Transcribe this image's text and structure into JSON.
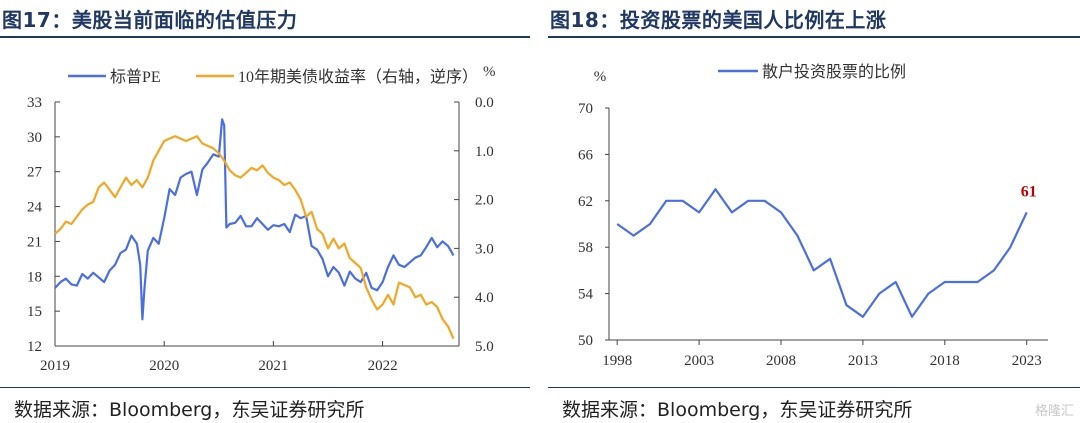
{
  "figures": [
    {
      "title": "图17：美股当前面临的估值压力",
      "source": "数据来源：Bloomberg，东吴证券研究所"
    },
    {
      "title": "图18：投资股票的美国人比例在上涨",
      "source": "数据来源：Bloomberg，东吴证券研究所"
    }
  ],
  "watermark": "格隆汇",
  "chart_data": [
    {
      "type": "line",
      "title": "",
      "xlabel": "",
      "x_ticks": [
        "2019",
        "2020",
        "2021",
        "2022"
      ],
      "x_range": [
        "2019-01",
        "2022-09"
      ],
      "y_left": {
        "label": "",
        "ylim": [
          12,
          33
        ],
        "ticks": [
          "12",
          "15",
          "18",
          "21",
          "24",
          "27",
          "30",
          "33"
        ]
      },
      "y_right": {
        "label": "%",
        "ylim": [
          0.0,
          5.0
        ],
        "inverted": true,
        "ticks": [
          "0.0",
          "1.0",
          "2.0",
          "3.0",
          "4.0",
          "5.0"
        ]
      },
      "legend": {
        "placement": "top",
        "entries": [
          "标普PE",
          "10年期美债收益率（右轴，逆序）"
        ]
      },
      "grid": false,
      "colors": {
        "sp_pe": "#4a6fe3",
        "yield": "#f5a623"
      },
      "series": [
        {
          "name": "标普PE",
          "axis": "left",
          "x": [
            2019.0,
            2019.05,
            2019.1,
            2019.15,
            2019.2,
            2019.25,
            2019.3,
            2019.35,
            2019.4,
            2019.45,
            2019.5,
            2019.55,
            2019.6,
            2019.65,
            2019.7,
            2019.75,
            2019.78,
            2019.8,
            2019.82,
            2019.85,
            2019.9,
            2019.95,
            2020.0,
            2020.05,
            2020.1,
            2020.15,
            2020.2,
            2020.25,
            2020.3,
            2020.35,
            2020.4,
            2020.45,
            2020.5,
            2020.53,
            2020.55,
            2020.57,
            2020.6,
            2020.65,
            2020.7,
            2020.75,
            2020.8,
            2020.85,
            2020.9,
            2020.95,
            2021.0,
            2021.05,
            2021.1,
            2021.15,
            2021.2,
            2021.25,
            2021.3,
            2021.35,
            2021.4,
            2021.45,
            2021.5,
            2021.55,
            2021.6,
            2021.65,
            2021.7,
            2021.75,
            2021.8,
            2021.85,
            2021.9,
            2021.95,
            2022.0,
            2022.05,
            2022.1,
            2022.15,
            2022.2,
            2022.25,
            2022.3,
            2022.35,
            2022.4,
            2022.45,
            2022.5,
            2022.55,
            2022.6,
            2022.65
          ],
          "y": [
            17.0,
            17.5,
            17.8,
            17.3,
            17.2,
            18.2,
            17.8,
            18.3,
            17.9,
            17.5,
            18.5,
            19.0,
            20.0,
            20.3,
            21.5,
            20.8,
            19.0,
            14.3,
            17.0,
            20.2,
            21.3,
            20.8,
            23.0,
            25.5,
            25.0,
            26.5,
            26.8,
            27.0,
            25.0,
            27.2,
            27.8,
            28.5,
            28.3,
            31.5,
            31.0,
            22.2,
            22.5,
            22.6,
            23.2,
            22.3,
            22.3,
            23.0,
            22.5,
            22.0,
            22.4,
            22.3,
            22.5,
            21.8,
            23.3,
            23.0,
            23.2,
            20.6,
            20.3,
            19.5,
            18.0,
            18.8,
            18.3,
            17.2,
            18.4,
            17.8,
            17.5,
            18.3,
            17.0,
            16.8,
            17.5,
            18.8,
            19.8,
            19.0,
            18.8,
            19.2,
            19.6,
            19.8,
            20.5,
            21.3,
            20.5,
            21.0,
            20.6,
            19.8
          ]
        },
        {
          "name": "10年期美债收益率（右轴，逆序）",
          "axis": "right",
          "x": [
            2019.0,
            2019.05,
            2019.1,
            2019.15,
            2019.2,
            2019.25,
            2019.3,
            2019.35,
            2019.4,
            2019.45,
            2019.5,
            2019.55,
            2019.6,
            2019.65,
            2019.7,
            2019.75,
            2019.8,
            2019.85,
            2019.9,
            2019.95,
            2020.0,
            2020.05,
            2020.1,
            2020.15,
            2020.2,
            2020.25,
            2020.3,
            2020.35,
            2020.4,
            2020.45,
            2020.5,
            2020.55,
            2020.6,
            2020.65,
            2020.7,
            2020.75,
            2020.8,
            2020.85,
            2020.9,
            2020.95,
            2021.0,
            2021.05,
            2021.1,
            2021.15,
            2021.2,
            2021.25,
            2021.3,
            2021.35,
            2021.4,
            2021.45,
            2021.5,
            2021.55,
            2021.6,
            2021.65,
            2021.7,
            2021.75,
            2021.8,
            2021.85,
            2021.9,
            2021.95,
            2022.0,
            2022.05,
            2022.1,
            2022.15,
            2022.2,
            2022.25,
            2022.3,
            2022.35,
            2022.4,
            2022.45,
            2022.5,
            2022.55,
            2022.6,
            2022.65
          ],
          "y": [
            2.7,
            2.6,
            2.45,
            2.5,
            2.35,
            2.2,
            2.1,
            2.05,
            1.75,
            1.65,
            1.8,
            1.95,
            1.75,
            1.55,
            1.7,
            1.6,
            1.75,
            1.55,
            1.2,
            1.0,
            0.8,
            0.75,
            0.7,
            0.75,
            0.8,
            0.75,
            0.7,
            0.85,
            0.9,
            0.95,
            1.05,
            1.2,
            1.4,
            1.5,
            1.55,
            1.45,
            1.35,
            1.4,
            1.3,
            1.45,
            1.55,
            1.6,
            1.7,
            1.65,
            1.8,
            2.0,
            2.35,
            2.25,
            2.6,
            2.7,
            3.0,
            2.8,
            3.0,
            2.9,
            3.2,
            3.3,
            3.4,
            3.8,
            4.05,
            4.25,
            4.15,
            3.95,
            4.15,
            3.7,
            3.75,
            3.8,
            4.0,
            3.95,
            4.15,
            4.1,
            4.2,
            4.45,
            4.6,
            4.85
          ]
        }
      ]
    },
    {
      "type": "line",
      "title": "",
      "xlabel": "",
      "ylabel": "%",
      "ylim": [
        50,
        70
      ],
      "y_ticks": [
        "50",
        "54",
        "58",
        "62",
        "66",
        "70"
      ],
      "x_ticks": [
        "1998",
        "2003",
        "2008",
        "2013",
        "2018",
        "2023"
      ],
      "xlim": [
        1997.5,
        2024.3
      ],
      "legend": {
        "placement": "top",
        "entries": [
          "散户投资股票的比例"
        ]
      },
      "grid": false,
      "colors": {
        "series": "#4a6fe3",
        "annotation": "#c00000"
      },
      "annotation": {
        "text": "61",
        "x": 2023,
        "y": 61
      },
      "series": [
        {
          "name": "散户投资股票的比例",
          "x": [
            1998,
            1999,
            2000,
            2001,
            2002,
            2003,
            2004,
            2005,
            2006,
            2007,
            2008,
            2009,
            2010,
            2011,
            2012,
            2013,
            2014,
            2015,
            2016,
            2017,
            2018,
            2019,
            2020,
            2021,
            2022,
            2023
          ],
          "values": [
            60,
            59,
            60,
            62,
            62,
            61,
            63,
            61,
            62,
            62,
            61,
            59,
            56,
            57,
            53,
            52,
            54,
            55,
            52,
            54,
            55,
            55,
            55,
            56,
            58,
            61
          ]
        }
      ]
    }
  ]
}
